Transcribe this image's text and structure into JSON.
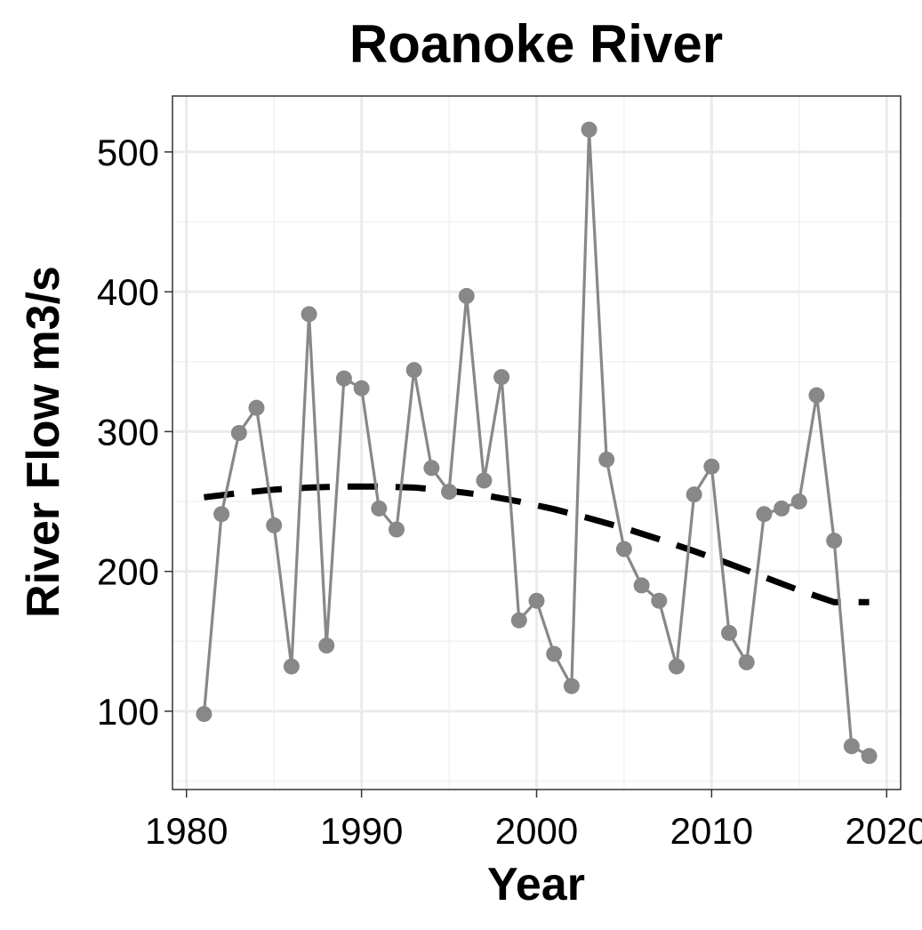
{
  "chart_data": {
    "type": "line",
    "title": "Roanoke River",
    "xlabel": "Year",
    "ylabel": "River Flow m3/s",
    "xlim": [
      1979.2,
      2020.8
    ],
    "ylim": [
      44,
      540
    ],
    "x_ticks": [
      1980,
      1990,
      2000,
      2010,
      2020
    ],
    "y_ticks": [
      100,
      200,
      300,
      400,
      500
    ],
    "grid": true,
    "legend": "none",
    "series": [
      {
        "style": "line+markers",
        "color": "#888888",
        "x": [
          1981,
          1982,
          1983,
          1984,
          1985,
          1986,
          1987,
          1988,
          1989,
          1990,
          1991,
          1992,
          1993,
          1994,
          1995,
          1996,
          1997,
          1998,
          1999,
          2000,
          2001,
          2002,
          2003,
          2004,
          2005,
          2006,
          2007,
          2008,
          2009,
          2010,
          2011,
          2012,
          2013,
          2014,
          2015,
          2016,
          2017,
          2018,
          2019
        ],
        "values": [
          98,
          241,
          299,
          317,
          233,
          132,
          384,
          147,
          338,
          331,
          245,
          230,
          344,
          274,
          257,
          397,
          265,
          339,
          165,
          179,
          141,
          118,
          516,
          280,
          216,
          190,
          179,
          132,
          255,
          275,
          156,
          135,
          241,
          245,
          250,
          326,
          222,
          75,
          68
        ]
      },
      {
        "style": "dashed trend",
        "color": "#000000",
        "x": [
          1981,
          1983,
          1985,
          1987,
          1989,
          1991,
          1993,
          1995,
          1997,
          1999,
          2001,
          2003,
          2005,
          2007,
          2009,
          2011,
          2013,
          2015,
          2017,
          2019
        ],
        "values": [
          253,
          256,
          258.5,
          260,
          260.7,
          260.7,
          260,
          257.7,
          254.5,
          250,
          244.5,
          238,
          231,
          223,
          214.5,
          205.5,
          196,
          186.5,
          178,
          178
        ]
      }
    ]
  }
}
